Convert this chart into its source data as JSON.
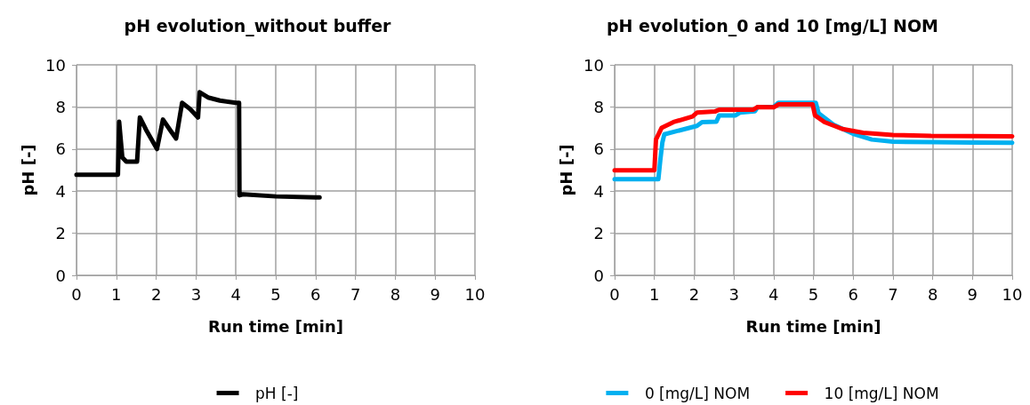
{
  "chart_data": [
    {
      "type": "line",
      "title": "pH evolution_without buffer",
      "xlabel": "Run time [min]",
      "ylabel": "pH [-]",
      "xlim": [
        0,
        10
      ],
      "xticks": [
        0,
        1,
        2,
        3,
        4,
        5,
        6,
        7,
        8,
        9,
        10
      ],
      "ylim": [
        0,
        10
      ],
      "yticks": [
        0,
        2,
        4,
        6,
        8,
        10
      ],
      "grid": true,
      "legend": "bottom",
      "marker": "none",
      "line_style": "solid",
      "series": [
        {
          "name": "pH [-]",
          "color": "#000000",
          "x": [
            0,
            1.04,
            1.07,
            1.15,
            1.25,
            1.52,
            1.59,
            1.75,
            2.02,
            2.17,
            2.35,
            2.5,
            2.65,
            2.85,
            3.05,
            3.09,
            3.3,
            3.6,
            4.0,
            4.08,
            4.09,
            4.18,
            5.0,
            6.0,
            6.1
          ],
          "values": [
            4.78,
            4.78,
            7.3,
            5.6,
            5.4,
            5.4,
            7.5,
            6.9,
            6.0,
            7.4,
            6.9,
            6.5,
            8.2,
            7.9,
            7.5,
            8.7,
            8.45,
            8.3,
            8.2,
            8.2,
            3.8,
            3.85,
            3.75,
            3.7,
            3.7
          ]
        }
      ]
    },
    {
      "type": "line",
      "title": "pH evolution_0 and 10 [mg/L] NOM",
      "xlabel": "Run time [min]",
      "ylabel": "pH [-]",
      "xlim": [
        0,
        10
      ],
      "xticks": [
        0,
        1,
        2,
        3,
        4,
        5,
        6,
        7,
        8,
        9,
        10
      ],
      "ylim": [
        0,
        10
      ],
      "yticks": [
        0,
        2,
        4,
        6,
        8,
        10
      ],
      "grid": true,
      "legend": "bottom",
      "marker": "none",
      "line_style": "solid",
      "series": [
        {
          "name": "0 [mg/L] NOM",
          "color": "#00b0f0",
          "x": [
            0,
            1.1,
            1.15,
            1.2,
            1.25,
            2.07,
            2.2,
            2.56,
            2.63,
            3.04,
            3.15,
            3.53,
            3.6,
            4.0,
            4.12,
            5.06,
            5.13,
            5.5,
            6.03,
            6.47,
            7.0,
            8.0,
            9.0,
            10.0
          ],
          "values": [
            4.57,
            4.57,
            5.5,
            6.3,
            6.7,
            7.1,
            7.28,
            7.3,
            7.6,
            7.6,
            7.73,
            7.8,
            8.0,
            8.0,
            8.2,
            8.2,
            7.7,
            7.16,
            6.7,
            6.45,
            6.35,
            6.33,
            6.31,
            6.3
          ]
        },
        {
          "name": "10 [mg/L] NOM",
          "color": "#ff0000",
          "x": [
            0,
            1.0,
            1.04,
            1.18,
            1.48,
            1.96,
            2.07,
            2.52,
            2.63,
            3.49,
            3.6,
            4.0,
            4.12,
            4.98,
            5.04,
            5.28,
            5.73,
            6.25,
            7.0,
            7.96,
            9.0,
            10.0
          ],
          "values": [
            4.99,
            4.99,
            6.45,
            7.0,
            7.28,
            7.55,
            7.73,
            7.78,
            7.87,
            7.87,
            8.0,
            7.98,
            8.12,
            8.12,
            7.6,
            7.28,
            6.95,
            6.77,
            6.67,
            6.62,
            6.61,
            6.6
          ]
        }
      ]
    }
  ]
}
